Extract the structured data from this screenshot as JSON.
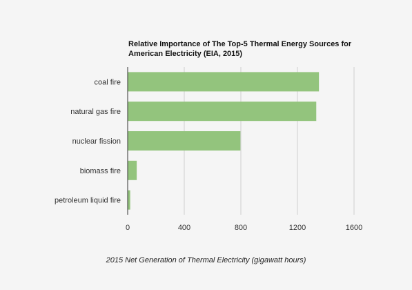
{
  "chart_data": {
    "type": "bar",
    "orientation": "horizontal",
    "title_lines": [
      "Relative Importance of The Top-5 Thermal Energy Sources for",
      "American Electricity (EIA, 2015)"
    ],
    "xlabel": "2015 Net Generation of Thermal Electricity (gigawatt hours)",
    "ylabel": "",
    "categories": [
      "coal fire",
      "natural gas fire",
      "nuclear fission",
      "biomass fire",
      "petroleum liquid fire"
    ],
    "values": [
      1352,
      1333,
      797,
      64,
      18
    ],
    "xlim": [
      0,
      1600
    ],
    "xticks": [
      "0",
      "400",
      "800",
      "1200",
      "1600"
    ],
    "grid": true,
    "bar_color": "#93c47d"
  }
}
